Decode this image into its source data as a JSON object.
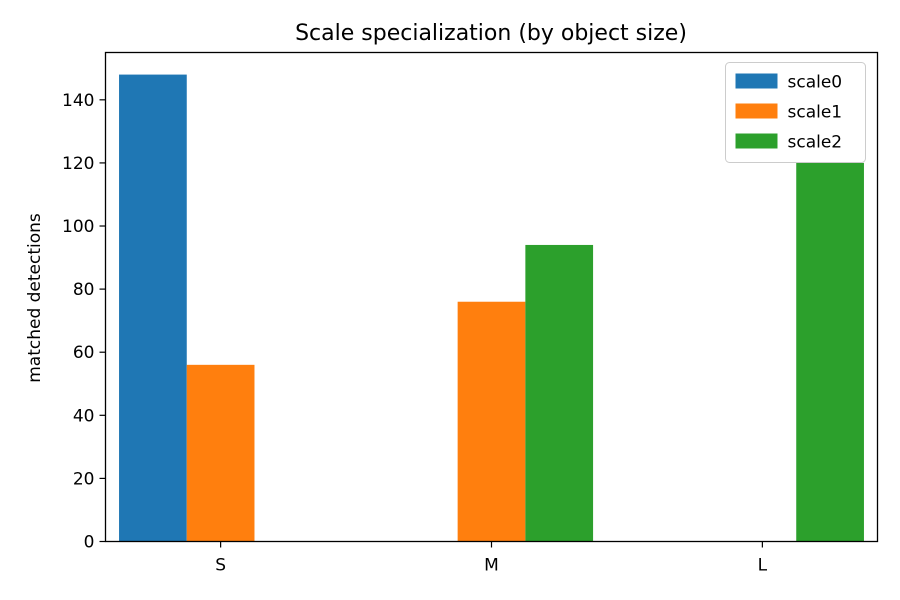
{
  "chart_data": {
    "type": "bar",
    "title": "Scale specialization (by object size)",
    "xlabel": "",
    "ylabel": "matched detections",
    "categories": [
      "S",
      "M",
      "L"
    ],
    "series": [
      {
        "name": "scale0",
        "color": "#1f77b4",
        "values": [
          148,
          0,
          0
        ]
      },
      {
        "name": "scale1",
        "color": "#ff7f0e",
        "values": [
          56,
          76,
          0
        ]
      },
      {
        "name": "scale2",
        "color": "#2ca02c",
        "values": [
          0,
          94,
          120
        ]
      }
    ],
    "ylim": [
      0,
      155
    ],
    "yticks": [
      0,
      20,
      40,
      60,
      80,
      100,
      120,
      140
    ],
    "legend_position": "top-right",
    "grid": false
  }
}
